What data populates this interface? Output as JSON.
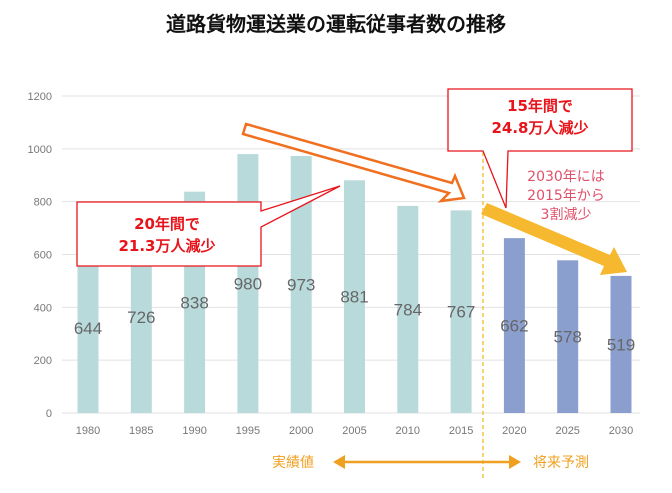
{
  "chart_data": {
    "type": "bar",
    "title": "道路貨物運送業の運転従事者数の推移",
    "categories": [
      "1980",
      "1985",
      "1990",
      "1995",
      "2000",
      "2005",
      "2010",
      "2015",
      "2020",
      "2025",
      "2030"
    ],
    "values": [
      644,
      726,
      838,
      980,
      973,
      881,
      784,
      767,
      662,
      578,
      519
    ],
    "ylim": [
      0,
      1200
    ],
    "yticks": [
      0,
      200,
      400,
      600,
      800,
      1000,
      1200
    ],
    "grid": true,
    "colors": {
      "actual": "#b9dadb",
      "forecast": "#8b9fcf"
    },
    "forecast_from": "2020",
    "annotations": {
      "left_callout": [
        "20年間で",
        "21.3万人減少"
      ],
      "right_callout": [
        "15年間で",
        "24.8万人減少"
      ],
      "note": [
        "2030年には",
        "2015年から",
        "3割減少"
      ],
      "actual_label": "実績値",
      "forecast_label": "将来予測"
    }
  }
}
